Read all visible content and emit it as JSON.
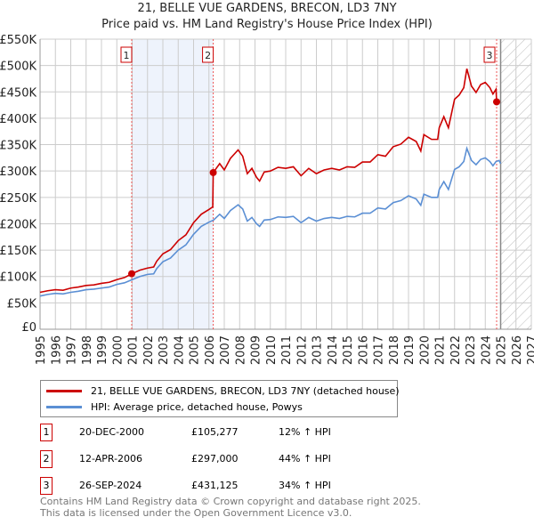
{
  "title": "21, BELLE VUE GARDENS, BRECON, LD3 7NY",
  "subtitle": "Price paid vs. HM Land Registry's House Price Index (HPI)",
  "chart_data": {
    "type": "line",
    "xlim": [
      1995,
      2027
    ],
    "ylim": [
      0,
      550000
    ],
    "y_ticks": [
      0,
      50000,
      100000,
      150000,
      200000,
      250000,
      300000,
      350000,
      400000,
      450000,
      500000,
      550000
    ],
    "y_tick_labels": [
      "£0",
      "£50K",
      "£100K",
      "£150K",
      "£200K",
      "£250K",
      "£300K",
      "£350K",
      "£400K",
      "£450K",
      "£500K",
      "£550K"
    ],
    "x_ticks": [
      "1995",
      "1996",
      "1997",
      "1998",
      "1999",
      "2000",
      "2001",
      "2002",
      "2003",
      "2004",
      "2005",
      "2006",
      "2007",
      "2008",
      "2009",
      "2010",
      "2011",
      "2012",
      "2013",
      "2014",
      "2015",
      "2016",
      "2017",
      "2018",
      "2019",
      "2020",
      "2021",
      "2022",
      "2023",
      "2024",
      "2025",
      "2026",
      "2027"
    ],
    "grid": true,
    "forecast_start": 2025,
    "highlight_range": [
      2000.97,
      2006.28
    ],
    "series": [
      {
        "name": "21, BELLE VUE GARDENS, BRECON, LD3 7NY (detached house)",
        "color": "#cc0000",
        "points": [
          [
            1995,
            70
          ],
          [
            1995.5,
            73
          ],
          [
            1996,
            75
          ],
          [
            1996.5,
            74
          ],
          [
            1997,
            78
          ],
          [
            1997.5,
            80
          ],
          [
            1998,
            83
          ],
          [
            1998.5,
            84
          ],
          [
            1999,
            87
          ],
          [
            1999.5,
            89
          ],
          [
            2000,
            94
          ],
          [
            2000.5,
            98
          ],
          [
            2000.97,
            105
          ],
          [
            2001.5,
            112
          ],
          [
            2002,
            116
          ],
          [
            2002.4,
            118
          ],
          [
            2002.6,
            129
          ],
          [
            2003,
            143
          ],
          [
            2003.5,
            151
          ],
          [
            2004,
            168
          ],
          [
            2004.5,
            179
          ],
          [
            2005,
            202
          ],
          [
            2005.5,
            218
          ],
          [
            2006,
            227
          ],
          [
            2006.25,
            232
          ],
          [
            2006.28,
            297
          ],
          [
            2006.7,
            314
          ],
          [
            2007,
            302
          ],
          [
            2007.4,
            324
          ],
          [
            2007.9,
            340
          ],
          [
            2008.2,
            328
          ],
          [
            2008.5,
            295
          ],
          [
            2008.8,
            305
          ],
          [
            2009.1,
            288
          ],
          [
            2009.3,
            281
          ],
          [
            2009.6,
            298
          ],
          [
            2010,
            300
          ],
          [
            2010.5,
            307
          ],
          [
            2011,
            305
          ],
          [
            2011.5,
            308
          ],
          [
            2012,
            291
          ],
          [
            2012.5,
            305
          ],
          [
            2013,
            295
          ],
          [
            2013.5,
            302
          ],
          [
            2014,
            305
          ],
          [
            2014.5,
            302
          ],
          [
            2015,
            308
          ],
          [
            2015.5,
            307
          ],
          [
            2016,
            317
          ],
          [
            2016.5,
            317
          ],
          [
            2017,
            331
          ],
          [
            2017.5,
            328
          ],
          [
            2018,
            346
          ],
          [
            2018.5,
            351
          ],
          [
            2019,
            364
          ],
          [
            2019.5,
            356
          ],
          [
            2019.8,
            338
          ],
          [
            2020,
            369
          ],
          [
            2020.5,
            360
          ],
          [
            2020.9,
            360
          ],
          [
            2021,
            382
          ],
          [
            2021.3,
            403
          ],
          [
            2021.6,
            382
          ],
          [
            2022,
            436
          ],
          [
            2022.3,
            444
          ],
          [
            2022.6,
            458
          ],
          [
            2022.8,
            494
          ],
          [
            2023.1,
            461
          ],
          [
            2023.4,
            449
          ],
          [
            2023.7,
            464
          ],
          [
            2024,
            468
          ],
          [
            2024.3,
            458
          ],
          [
            2024.5,
            446
          ],
          [
            2024.7,
            455
          ],
          [
            2024.74,
            431
          ],
          [
            2024.9,
            429
          ]
        ]
      },
      {
        "name": "HPI: Average price, detached house, Powys",
        "color": "#5b8fd4",
        "points": [
          [
            1995,
            63
          ],
          [
            1995.5,
            66
          ],
          [
            1996,
            68
          ],
          [
            1996.5,
            67
          ],
          [
            1997,
            70
          ],
          [
            1997.5,
            72
          ],
          [
            1998,
            75
          ],
          [
            1998.5,
            76
          ],
          [
            1999,
            78
          ],
          [
            1999.5,
            80
          ],
          [
            2000,
            85
          ],
          [
            2000.5,
            88
          ],
          [
            2001,
            94
          ],
          [
            2001.5,
            100
          ],
          [
            2002,
            104
          ],
          [
            2002.4,
            105
          ],
          [
            2002.6,
            115
          ],
          [
            2003,
            128
          ],
          [
            2003.5,
            135
          ],
          [
            2004,
            150
          ],
          [
            2004.5,
            160
          ],
          [
            2005,
            180
          ],
          [
            2005.5,
            195
          ],
          [
            2006,
            203
          ],
          [
            2006.3,
            207
          ],
          [
            2006.7,
            218
          ],
          [
            2007,
            210
          ],
          [
            2007.4,
            225
          ],
          [
            2007.9,
            236
          ],
          [
            2008.2,
            228
          ],
          [
            2008.5,
            205
          ],
          [
            2008.8,
            212
          ],
          [
            2009.1,
            200
          ],
          [
            2009.3,
            195
          ],
          [
            2009.6,
            207
          ],
          [
            2010,
            208
          ],
          [
            2010.5,
            213
          ],
          [
            2011,
            212
          ],
          [
            2011.5,
            214
          ],
          [
            2012,
            202
          ],
          [
            2012.5,
            212
          ],
          [
            2013,
            205
          ],
          [
            2013.5,
            210
          ],
          [
            2014,
            212
          ],
          [
            2014.5,
            210
          ],
          [
            2015,
            214
          ],
          [
            2015.5,
            213
          ],
          [
            2016,
            220
          ],
          [
            2016.5,
            220
          ],
          [
            2017,
            230
          ],
          [
            2017.5,
            228
          ],
          [
            2018,
            240
          ],
          [
            2018.5,
            244
          ],
          [
            2019,
            253
          ],
          [
            2019.5,
            247
          ],
          [
            2019.8,
            235
          ],
          [
            2020,
            256
          ],
          [
            2020.5,
            250
          ],
          [
            2020.9,
            250
          ],
          [
            2021,
            265
          ],
          [
            2021.3,
            280
          ],
          [
            2021.6,
            265
          ],
          [
            2022,
            303
          ],
          [
            2022.3,
            308
          ],
          [
            2022.6,
            318
          ],
          [
            2022.8,
            343
          ],
          [
            2023.1,
            320
          ],
          [
            2023.4,
            312
          ],
          [
            2023.7,
            322
          ],
          [
            2024,
            325
          ],
          [
            2024.3,
            318
          ],
          [
            2024.5,
            310
          ],
          [
            2024.7,
            318
          ],
          [
            2024.9,
            320
          ],
          [
            2025,
            314
          ]
        ]
      }
    ],
    "sales": [
      {
        "label": "1",
        "x": 2000.97,
        "value": 105277
      },
      {
        "label": "2",
        "x": 2006.28,
        "value": 297000
      },
      {
        "label": "3",
        "x": 2024.74,
        "value": 431125
      }
    ]
  },
  "legend": {
    "red": "21, BELLE VUE GARDENS, BRECON, LD3 7NY (detached house)",
    "blue": "HPI: Average price, detached house, Powys"
  },
  "transactions": [
    {
      "num": "1",
      "date": "20-DEC-2000",
      "price": "£105,277",
      "hpi": "12% ↑ HPI"
    },
    {
      "num": "2",
      "date": "12-APR-2006",
      "price": "£297,000",
      "hpi": "44% ↑ HPI"
    },
    {
      "num": "3",
      "date": "26-SEP-2024",
      "price": "£431,125",
      "hpi": "34% ↑ HPI"
    }
  ],
  "footer": {
    "line1": "Contains HM Land Registry data © Crown copyright and database right 2025.",
    "line2": "This data is licensed under the Open Government Licence v3.0."
  }
}
